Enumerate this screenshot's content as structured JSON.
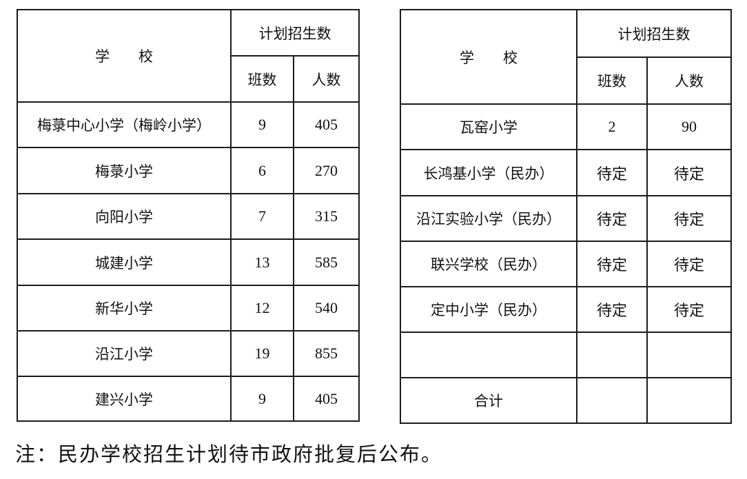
{
  "header": {
    "school": "学　　校",
    "plan": "计划招生数",
    "classes": "班数",
    "students": "人数"
  },
  "left_rows": [
    {
      "school": "梅菉中心小学（梅岭小学）",
      "classes": "9",
      "students": "405"
    },
    {
      "school": "梅菉小学",
      "classes": "6",
      "students": "270"
    },
    {
      "school": "向阳小学",
      "classes": "7",
      "students": "315"
    },
    {
      "school": "城建小学",
      "classes": "13",
      "students": "585"
    },
    {
      "school": "新华小学",
      "classes": "12",
      "students": "540"
    },
    {
      "school": "沿江小学",
      "classes": "19",
      "students": "855"
    },
    {
      "school": "建兴小学",
      "classes": "9",
      "students": "405"
    }
  ],
  "right_rows": [
    {
      "school": "瓦窑小学",
      "classes": "2",
      "students": "90"
    },
    {
      "school": "长鸿基小学（民办）",
      "classes": "待定",
      "students": "待定"
    },
    {
      "school": "沿江实验小学（民办）",
      "classes": "待定",
      "students": "待定"
    },
    {
      "school": "联兴学校（民办）",
      "classes": "待定",
      "students": "待定"
    },
    {
      "school": "定中小学（民办）",
      "classes": "待定",
      "students": "待定"
    },
    {
      "school": "",
      "classes": "",
      "students": ""
    },
    {
      "school": "合计",
      "classes": "",
      "students": ""
    }
  ],
  "note": "注：民办学校招生计划待市政府批复后公布。"
}
